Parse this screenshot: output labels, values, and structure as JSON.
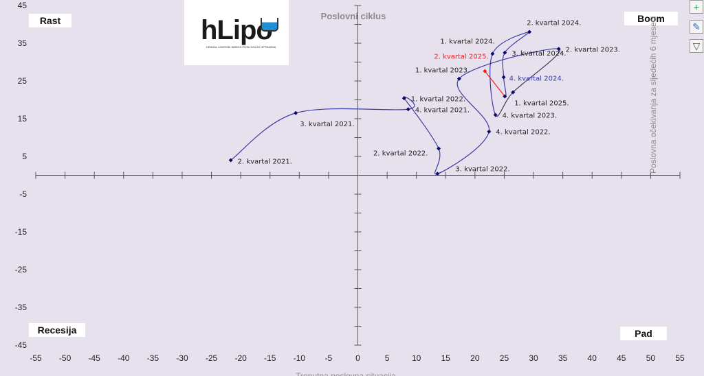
{
  "chart_data": {
    "type": "line",
    "title": "Poslovni ciklus",
    "xlabel": "Trenutna poslovna situacija",
    "ylabel": "Poslovna očekivanja za sljedećih 6 mjeseci",
    "xlim": [
      -55,
      55
    ],
    "ylim": [
      -45,
      45
    ],
    "x_ticks": [
      "-55",
      "-50",
      "-45",
      "-40",
      "-35",
      "-30",
      "-25",
      "-20",
      "-15",
      "-10",
      "-5",
      "0",
      "5",
      "10",
      "15",
      "20",
      "25",
      "30",
      "35",
      "40",
      "45",
      "50",
      "55"
    ],
    "y_ticks": [
      "45",
      "35",
      "25",
      "15",
      "5",
      "-5",
      "-15",
      "-25",
      "-35",
      "-45"
    ],
    "grid": false,
    "quadrants": {
      "top_left": "Rast",
      "top_right": "Boom",
      "bottom_left": "Recesija",
      "bottom_right": "Pad"
    },
    "points": [
      {
        "label": "2. kvartal 2021.",
        "x": -21.7,
        "y": 4.0
      },
      {
        "label": "3. kvartal 2021.",
        "x": -10.6,
        "y": 16.5
      },
      {
        "label": "4. kvartal 2021.",
        "x": 8.6,
        "y": 17.5
      },
      {
        "label": "1. kvartal 2022.",
        "x": 7.9,
        "y": 20.4
      },
      {
        "label": "2. kvartal 2022.",
        "x": 13.8,
        "y": 7.1
      },
      {
        "label": "3. kvartal 2022.",
        "x": 13.6,
        "y": 0.4
      },
      {
        "label": "4. kvartal 2022.",
        "x": 22.4,
        "y": 11.6
      },
      {
        "label": "1. kvartal 2023.",
        "x": 17.3,
        "y": 25.6
      },
      {
        "label": "2. kvartal 2023.",
        "x": 34.3,
        "y": 33.5
      },
      {
        "label": "",
        "x": 26.5,
        "y": 22.0
      },
      {
        "label": "4. kvartal 2023.",
        "x": 23.5,
        "y": 16.0
      },
      {
        "label": "1. kvartal 2024.",
        "x": 23.0,
        "y": 32.2
      },
      {
        "label": "2. kvartal 2024.",
        "x": 29.3,
        "y": 38.0
      },
      {
        "label": "3. kvartal 2024.",
        "x": 25.1,
        "y": 32.5
      },
      {
        "label": "4. kvartal 2024.",
        "x": 24.9,
        "y": 26.0
      },
      {
        "label": "1. kvartal 2025.",
        "x": 25.1,
        "y": 20.9
      },
      {
        "label": "2. kvartal 2025.",
        "x": 21.7,
        "y": 27.6
      }
    ],
    "colors": {
      "line": "#3b3ba6",
      "marker": "#0b0b6b",
      "latest": "#ff1a1a",
      "highlight_label": "#3b3ba6"
    }
  },
  "logo": {
    "text": "hLipo",
    "subtitle": "HENDAL LIDERSKI INDEKS POSLOVNOG OPTIMIZMA"
  },
  "toolbar": {
    "icons": [
      "plus-icon",
      "brush-icon",
      "filter-icon"
    ]
  }
}
